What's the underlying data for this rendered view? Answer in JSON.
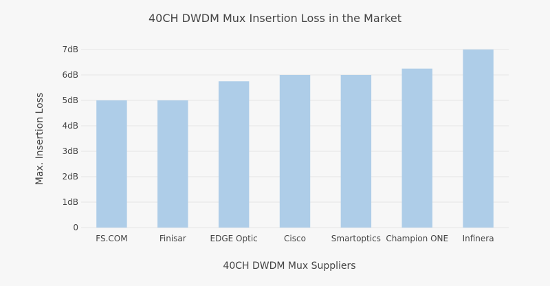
{
  "chart_data": {
    "type": "bar",
    "title": "40CH DWDM Mux Insertion Loss in the Market",
    "xlabel": "40CH DWDM Mux Suppliers",
    "ylabel": "Max. Insertion Loss",
    "categories": [
      "FS.COM",
      "Finisar",
      "EDGE Optic",
      "Cisco",
      "Smartoptics",
      "Champion ONE",
      "Infinera"
    ],
    "values": [
      5,
      5,
      5.75,
      6,
      6,
      6.25,
      7
    ],
    "ylim": [
      0,
      7
    ],
    "y_ticks": [
      {
        "value": 0,
        "label": "0"
      },
      {
        "value": 1,
        "label": "1dB"
      },
      {
        "value": 2,
        "label": "2dB"
      },
      {
        "value": 3,
        "label": "3dB"
      },
      {
        "value": 4,
        "label": "4dB"
      },
      {
        "value": 5,
        "label": "5dB"
      },
      {
        "value": 6,
        "label": "6dB"
      },
      {
        "value": 7,
        "label": "7dB"
      }
    ],
    "grid": true,
    "legend": "none",
    "colors": {
      "bar": "#aecde8",
      "grid": "#e6e6e6",
      "background": "#f7f7f7",
      "text": "#444444"
    }
  }
}
